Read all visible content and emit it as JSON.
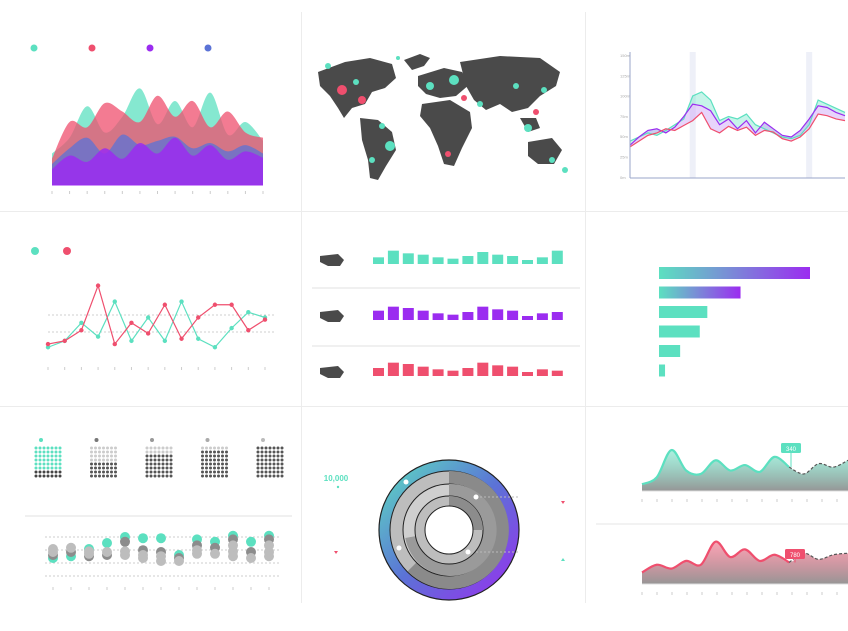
{
  "colors": {
    "teal": "#5ce0c0",
    "pink": "#ef4f6e",
    "purple": "#9b2cf0",
    "blue": "#5b73d6",
    "map": "#4a4a4a",
    "grid": "#e6e6e6",
    "axis": "#9aa5c8"
  },
  "icons": {
    "map": "world-map-icon",
    "country_usa": "usa-silhouette-icon",
    "country_europe": "europe-silhouette-icon",
    "country_asia": "asia-silhouette-icon"
  },
  "chart_data": [
    {
      "type": "area",
      "legend_colors": [
        "#5ce0c0",
        "#ef4f6e",
        "#9b2cf0",
        "#5b73d6"
      ],
      "x": [
        0,
        1,
        2,
        3,
        4,
        5,
        6,
        7,
        8,
        9,
        10,
        11,
        12
      ],
      "series": [
        {
          "color": "#5ce0c0",
          "values": [
            30,
            45,
            75,
            50,
            65,
            92,
            58,
            80,
            55,
            88,
            48,
            60,
            42
          ]
        },
        {
          "color": "#ef4f6e",
          "values": [
            25,
            60,
            55,
            78,
            70,
            60,
            85,
            65,
            80,
            55,
            70,
            50,
            45
          ]
        },
        {
          "color": "#5b73d6",
          "values": [
            20,
            35,
            45,
            30,
            48,
            38,
            42,
            46,
            35,
            40,
            32,
            38,
            30
          ]
        },
        {
          "color": "#9b2cf0",
          "values": [
            15,
            28,
            22,
            35,
            25,
            40,
            30,
            45,
            28,
            38,
            24,
            32,
            26
          ]
        }
      ],
      "ylim": [
        0,
        100
      ]
    },
    {
      "type": "line",
      "ytick_labels": [
        "150m",
        "125m",
        "100m",
        "75m",
        "50m",
        "25m",
        "0m"
      ],
      "ylim": [
        0,
        150
      ],
      "x": [
        0,
        1,
        2,
        3,
        4,
        5,
        6,
        7,
        8,
        9,
        10,
        11,
        12,
        13,
        14,
        15,
        16,
        17,
        18,
        19,
        20,
        21,
        22,
        23,
        24
      ],
      "series": [
        {
          "color": "#5ce0c0",
          "values": [
            45,
            50,
            55,
            52,
            58,
            65,
            72,
            100,
            105,
            95,
            70,
            75,
            72,
            78,
            65,
            60,
            55,
            50,
            48,
            52,
            65,
            95,
            90,
            85,
            80
          ]
        },
        {
          "color": "#9b2cf0",
          "values": [
            40,
            50,
            58,
            60,
            55,
            62,
            75,
            90,
            88,
            82,
            65,
            72,
            60,
            70,
            55,
            68,
            60,
            52,
            50,
            58,
            72,
            88,
            86,
            80,
            76
          ]
        },
        {
          "color": "#ef4f6e",
          "values": [
            38,
            45,
            52,
            55,
            60,
            58,
            64,
            70,
            80,
            60,
            55,
            63,
            58,
            62,
            52,
            58,
            56,
            48,
            45,
            50,
            60,
            78,
            76,
            72,
            70
          ]
        }
      ],
      "highlight_bands": [
        7,
        20
      ]
    },
    {
      "type": "line",
      "legend_colors": [
        "#5ce0c0",
        "#ef4f6e"
      ],
      "x": [
        0,
        1,
        2,
        3,
        4,
        5,
        6,
        7,
        8,
        9,
        10,
        11,
        12,
        13
      ],
      "series": [
        {
          "color": "#5ce0c0",
          "values": [
            12,
            18,
            35,
            22,
            55,
            18,
            40,
            18,
            55,
            20,
            12,
            30,
            45,
            40
          ]
        },
        {
          "color": "#ef4f6e",
          "values": [
            15,
            18,
            28,
            70,
            15,
            35,
            25,
            52,
            20,
            40,
            52,
            52,
            28,
            38
          ]
        }
      ],
      "ylim": [
        0,
        80
      ]
    },
    {
      "type": "bar",
      "rows": [
        {
          "icon": "usa-silhouette-icon",
          "color": "#5ce0c0",
          "values": [
            5,
            10,
            8,
            7,
            5,
            4,
            6,
            9,
            7,
            6,
            3,
            5,
            10
          ]
        },
        {
          "icon": "europe-silhouette-icon",
          "color": "#9b2cf0",
          "values": [
            7,
            10,
            9,
            7,
            5,
            4,
            6,
            10,
            8,
            7,
            3,
            5,
            6
          ]
        },
        {
          "icon": "asia-silhouette-icon",
          "color": "#ef4f6e",
          "values": [
            6,
            10,
            9,
            7,
            5,
            4,
            6,
            10,
            8,
            7,
            3,
            5,
            4
          ]
        }
      ],
      "ylim": [
        0,
        12
      ]
    },
    {
      "type": "bar",
      "orientation": "horizontal",
      "values": [
        100,
        54,
        32,
        27,
        14,
        4
      ],
      "gradient": [
        "#5ce0c0",
        "#9b2cf0"
      ],
      "xlim": [
        0,
        100
      ]
    },
    {
      "type": "heatmap",
      "description_free": true,
      "groups": [
        {
          "marker_color": "#5ce0c0",
          "filled_rows": 6,
          "total_rows": 8
        },
        {
          "marker_color": "#777777",
          "filled_rows": 4,
          "total_rows": 8
        },
        {
          "marker_color": "#999999",
          "filled_rows": 2,
          "total_rows": 8
        },
        {
          "marker_color": "#aaaaaa",
          "filled_rows": 1,
          "total_rows": 8
        },
        {
          "marker_color": "#bbbbbb",
          "filled_rows": 0,
          "total_rows": 8
        }
      ]
    },
    {
      "type": "scatter",
      "columns": [
        [
          0.45,
          0.5,
          0.55,
          0.6
        ],
        [
          0.48,
          0.55,
          0.62
        ],
        [
          0.6,
          0.48,
          0.52,
          0.56
        ],
        [
          0.7,
          0.5,
          0.55
        ],
        [
          0.8,
          0.72,
          0.56,
          0.5
        ],
        [
          0.78,
          0.58,
          0.5,
          0.45
        ],
        [
          0.78,
          0.55,
          0.48,
          0.4
        ],
        [
          0.5,
          0.45,
          0.4
        ],
        [
          0.76,
          0.66,
          0.58,
          0.52
        ],
        [
          0.72,
          0.62,
          0.52
        ],
        [
          0.82,
          0.76,
          0.66,
          0.56,
          0.48
        ],
        [
          0.72,
          0.55,
          0.45
        ],
        [
          0.82,
          0.76,
          0.66,
          0.55,
          0.48
        ]
      ],
      "ylim": [
        0,
        1
      ]
    },
    {
      "type": "pie",
      "label": "10,000",
      "rings": [
        {
          "name": "outer",
          "fraction": 1.0
        },
        {
          "name": "r1",
          "fraction": 0.75
        },
        {
          "name": "r2",
          "fraction": 0.6
        },
        {
          "name": "r3",
          "fraction": 0.45
        }
      ]
    },
    {
      "type": "area",
      "callout": "340",
      "color": "#5ce0c0",
      "x": [
        0,
        1,
        2,
        3,
        4,
        5,
        6,
        7,
        8,
        9,
        10,
        11,
        12,
        13,
        14
      ],
      "values": [
        10,
        20,
        60,
        30,
        25,
        45,
        30,
        38,
        28,
        50,
        35,
        25,
        40,
        35,
        45
      ],
      "ylim": [
        0,
        80
      ]
    },
    {
      "type": "area",
      "callout": "780",
      "color": "#ef4f6e",
      "x": [
        0,
        1,
        2,
        3,
        4,
        5,
        6,
        7,
        8,
        9,
        10,
        11,
        12,
        13,
        14
      ],
      "values": [
        15,
        25,
        20,
        30,
        25,
        55,
        35,
        45,
        30,
        38,
        28,
        40,
        32,
        38,
        40
      ],
      "ylim": [
        0,
        80
      ]
    }
  ]
}
